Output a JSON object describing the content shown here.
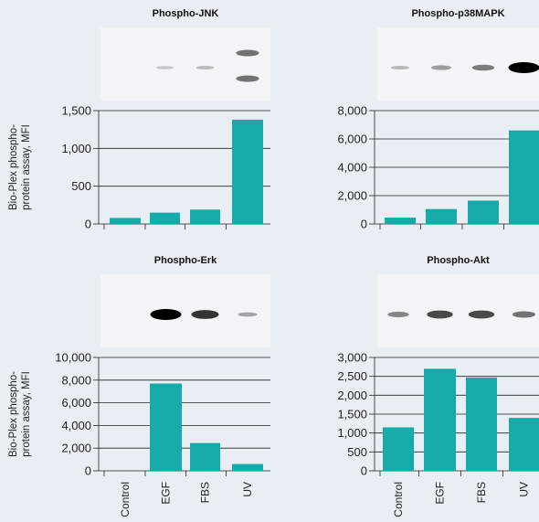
{
  "colors": {
    "bar": "#16aaa8",
    "background": "#e9eef4",
    "grid": "#222222",
    "blot_background": "#f3f4f5",
    "band": "#000000"
  },
  "y_axis_label_lines": [
    "Bio-Plex phospho-",
    "protein assay, MFI"
  ],
  "chart_data": [
    {
      "type": "bar",
      "title": "Phospho-JNK",
      "categories": [
        "Control",
        "EGF",
        "FBS",
        "UV"
      ],
      "values": [
        80,
        150,
        190,
        1380
      ],
      "ylim": [
        0,
        1500
      ],
      "yticks": [
        0,
        500,
        1000,
        1500
      ],
      "ytick_labels": [
        "0",
        "500",
        "1,000",
        "1,500"
      ],
      "grid": true,
      "blot_band_intensity": [
        0.0,
        0.05,
        0.1,
        0.45
      ],
      "blot_band_count": [
        1,
        1,
        1,
        2
      ]
    },
    {
      "type": "bar",
      "title": "Phospho-p38MAPK",
      "categories": [
        "Control",
        "EGF",
        "FBS",
        "UV"
      ],
      "values": [
        450,
        1050,
        1650,
        6600
      ],
      "ylim": [
        0,
        8000
      ],
      "yticks": [
        0,
        2000,
        4000,
        6000,
        8000
      ],
      "ytick_labels": [
        "0",
        "2,000",
        "4,000",
        "6,000",
        "8,000"
      ],
      "grid": true,
      "blot_band_intensity": [
        0.12,
        0.25,
        0.4,
        1.0
      ],
      "blot_band_count": [
        1,
        1,
        1,
        1
      ]
    },
    {
      "type": "bar",
      "title": "Phospho-Erk",
      "categories": [
        "Control",
        "EGF",
        "FBS",
        "UV"
      ],
      "values": [
        0,
        7700,
        2450,
        600
      ],
      "ylim": [
        0,
        10000
      ],
      "yticks": [
        0,
        2000,
        4000,
        6000,
        8000,
        10000
      ],
      "ytick_labels": [
        "0",
        "2,000",
        "4,000",
        "6,000",
        "8,000",
        "10,000"
      ],
      "grid": true,
      "blot_band_intensity": [
        0.0,
        1.0,
        0.75,
        0.2
      ],
      "blot_band_count": [
        1,
        1,
        1,
        1
      ]
    },
    {
      "type": "bar",
      "title": "Phospho-Akt",
      "categories": [
        "Control",
        "EGF",
        "FBS",
        "UV"
      ],
      "values": [
        1150,
        2700,
        2470,
        1400
      ],
      "ylim": [
        0,
        3000
      ],
      "yticks": [
        0,
        500,
        1000,
        1500,
        2000,
        2500,
        3000
      ],
      "ytick_labels": [
        "0",
        "500",
        "1,000",
        "1,500",
        "2,000",
        "2,500",
        "3,000"
      ],
      "grid": true,
      "blot_band_intensity": [
        0.35,
        0.65,
        0.65,
        0.45
      ],
      "blot_band_count": [
        1,
        1,
        1,
        1
      ]
    }
  ]
}
